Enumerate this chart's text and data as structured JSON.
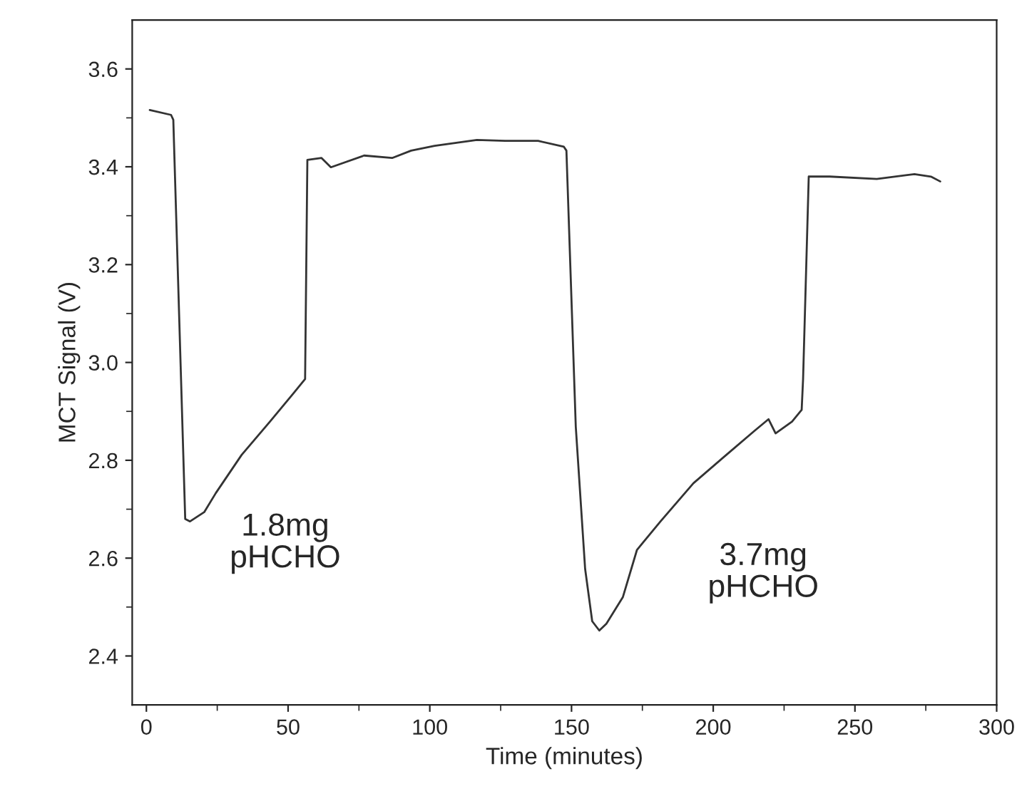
{
  "chart_data": {
    "type": "line",
    "xlabel": "Time (minutes)",
    "ylabel": "MCT Signal (V)",
    "xlim": [
      -5,
      300
    ],
    "ylim": [
      2.3,
      3.7
    ],
    "xticks": [
      0,
      50,
      100,
      150,
      200,
      250,
      300
    ],
    "yticks": [
      2.4,
      2.6,
      2.8,
      {
        "value": 3.0,
        "label": "3.0"
      },
      3.2,
      3.4,
      3.6
    ],
    "grid": false,
    "marker": "none",
    "line_style": "solid",
    "series": [
      {
        "color": "#333333",
        "x": [
          1.2,
          8.7,
          9.5,
          13.7,
          15.4,
          20.4,
          24.5,
          33.6,
          43.6,
          51.9,
          56.0,
          56.8,
          61.8,
          65.1,
          76.8,
          86.7,
          93.4,
          101.7,
          116.6,
          126.6,
          138.2,
          147.3,
          148.2,
          151.5,
          154.8,
          157.3,
          159.8,
          162.3,
          168.1,
          173.1,
          181.4,
          193.0,
          204.6,
          214.5,
          219.5,
          222.0,
          227.8,
          231.2,
          231.7,
          233.7,
          241.1,
          257.7,
          271.0,
          276.8,
          280.1
        ],
        "values": [
          3.516,
          3.506,
          3.496,
          2.68,
          2.675,
          2.694,
          2.733,
          2.811,
          2.879,
          2.937,
          2.966,
          3.414,
          3.418,
          3.399,
          3.423,
          3.418,
          3.433,
          3.443,
          3.455,
          3.453,
          3.453,
          3.441,
          3.433,
          2.869,
          2.578,
          2.471,
          2.452,
          2.466,
          2.52,
          2.617,
          2.675,
          2.753,
          2.811,
          2.86,
          2.884,
          2.855,
          2.879,
          2.903,
          2.966,
          3.38,
          3.38,
          3.375,
          3.385,
          3.38,
          3.37
        ]
      }
    ],
    "annotations": [
      "1.8mg\npHCHO",
      "3.7mg\npHCHO"
    ]
  }
}
